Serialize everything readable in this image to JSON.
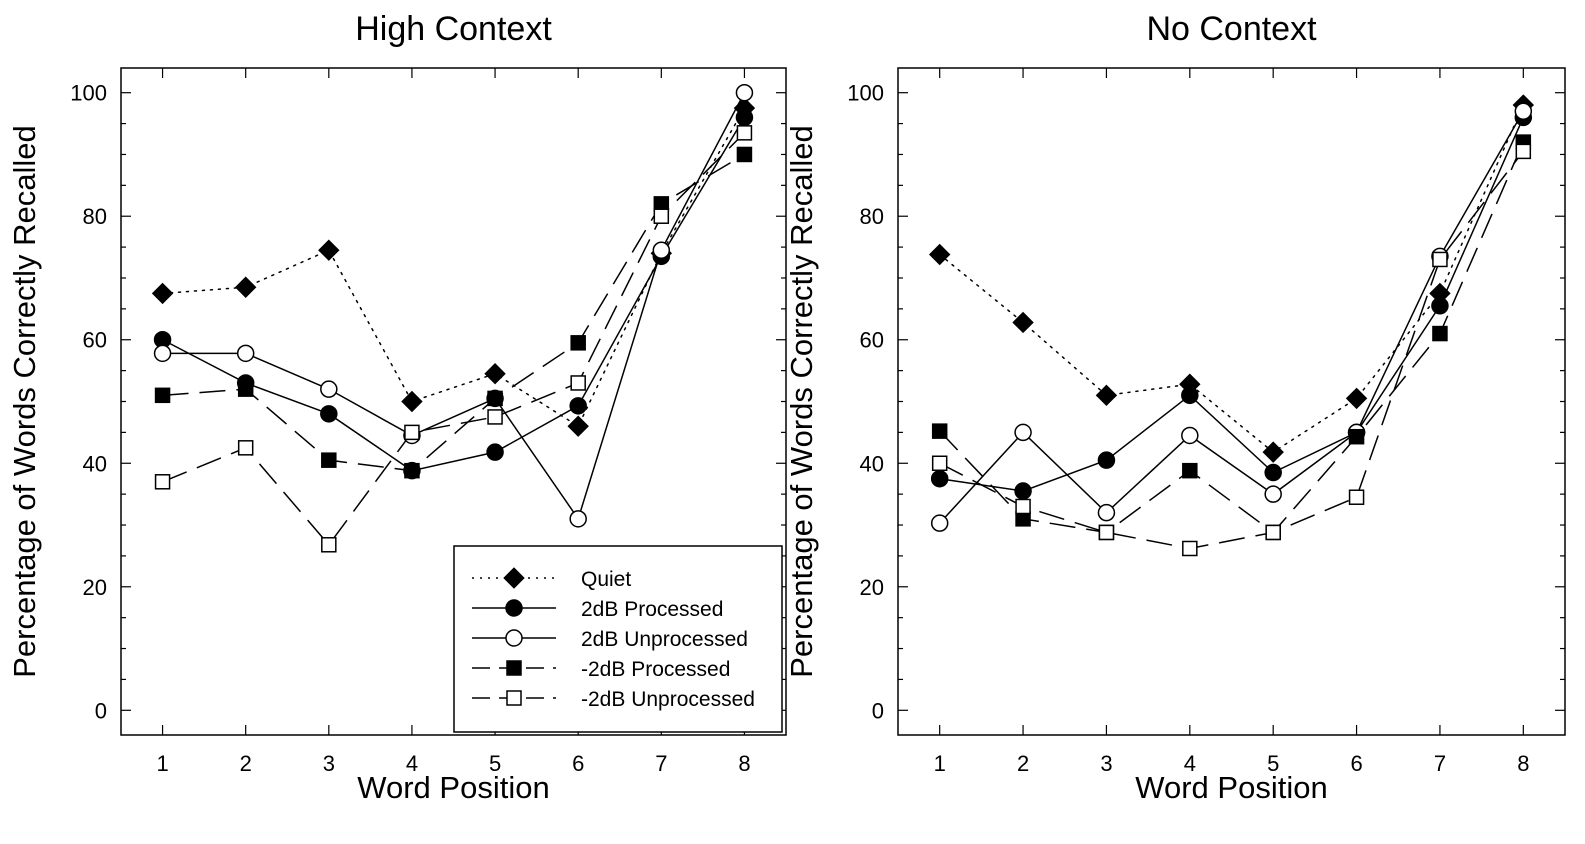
{
  "chart_data": [
    {
      "type": "line",
      "title": "High Context",
      "xlabel": "Word Position",
      "ylabel": "Percentage of Words Correctly Recalled",
      "x": [
        1,
        2,
        3,
        4,
        5,
        6,
        7,
        8
      ],
      "xlim": [
        0.5,
        8.5
      ],
      "ylim": [
        -4,
        104
      ],
      "yticks": [
        0,
        20,
        40,
        60,
        80,
        100
      ],
      "legend": "bottom-right",
      "series": [
        {
          "name": "Quiet",
          "values": [
            67.5,
            68.5,
            74.5,
            50,
            54.5,
            46,
            74,
            97.5
          ],
          "style": "dotted",
          "marker": "diamond-filled"
        },
        {
          "name": "2dB Processed",
          "values": [
            60,
            53,
            48,
            38.8,
            41.8,
            49.3,
            73.5,
            96
          ],
          "style": "solid",
          "marker": "circle-filled"
        },
        {
          "name": "2dB Unprocessed",
          "values": [
            57.8,
            57.8,
            52,
            44.5,
            50.5,
            31,
            74.5,
            100
          ],
          "style": "solid",
          "marker": "circle-open"
        },
        {
          "name": "-2dB Processed",
          "values": [
            51,
            52,
            40.5,
            38.8,
            50.5,
            59.5,
            82,
            90
          ],
          "style": "dashed",
          "marker": "square-filled"
        },
        {
          "name": "-2dB Unprocessed",
          "values": [
            37,
            42.5,
            26.8,
            45,
            47.5,
            53,
            80,
            93.5
          ],
          "style": "dashed",
          "marker": "square-open"
        }
      ]
    },
    {
      "type": "line",
      "title": "No Context",
      "xlabel": "Word Position",
      "ylabel": "Percentage of Words Correctly Recalled",
      "x": [
        1,
        2,
        3,
        4,
        5,
        6,
        7,
        8
      ],
      "xlim": [
        0.5,
        8.5
      ],
      "ylim": [
        -4,
        104
      ],
      "yticks": [
        0,
        20,
        40,
        60,
        80,
        100
      ],
      "series": [
        {
          "name": "Quiet",
          "values": [
            73.8,
            62.8,
            51,
            52.8,
            41.8,
            50.5,
            67.5,
            98
          ],
          "style": "dotted",
          "marker": "diamond-filled"
        },
        {
          "name": "2dB Processed",
          "values": [
            37.5,
            35.5,
            40.5,
            51,
            38.5,
            45,
            65.5,
            96
          ],
          "style": "solid",
          "marker": "circle-filled"
        },
        {
          "name": "2dB Unprocessed",
          "values": [
            30.3,
            45,
            32,
            44.5,
            35,
            45,
            73.5,
            97
          ],
          "style": "solid",
          "marker": "circle-open"
        },
        {
          "name": "-2dB Processed",
          "values": [
            45.2,
            31,
            28.8,
            38.8,
            28.8,
            44.3,
            61,
            92
          ],
          "style": "dashed",
          "marker": "square-filled"
        },
        {
          "name": "-2dB Unprocessed",
          "values": [
            40,
            33,
            28.8,
            26.2,
            28.8,
            34.5,
            73,
            90.5
          ],
          "style": "dashed",
          "marker": "square-open"
        }
      ]
    }
  ]
}
